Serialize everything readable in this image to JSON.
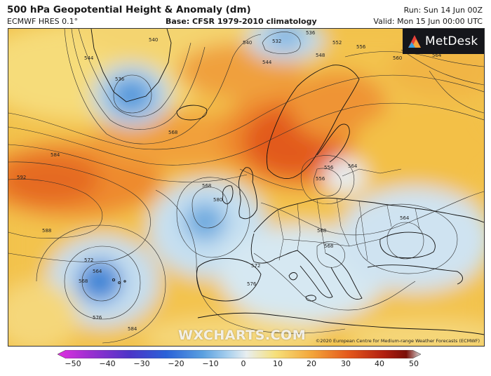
{
  "header": {
    "title": "500 hPa Geopotential Height & Anomaly (dm)",
    "model": "ECMWF HRES 0.1°",
    "base": "Base: CFSR 1979-2010 climatology",
    "run": "Run: Sun 14 Jun 00Z",
    "valid": "Valid: Mon 15 Jun 00:00 UTC"
  },
  "logo": {
    "text": "MetDesk",
    "icon": "metdesk-logo-icon"
  },
  "watermark": "WXCHARTS.COM",
  "copyright": "©2020 European Centre for Medium-range Weather Forecasts (ECMWF)",
  "contour_labels": [
    "544",
    "536",
    "540",
    "532",
    "536",
    "540",
    "544",
    "548",
    "552",
    "556",
    "560",
    "564",
    "568",
    "584",
    "592",
    "588",
    "568",
    "580",
    "572",
    "564",
    "568",
    "576",
    "584",
    "572",
    "576",
    "564",
    "568",
    "556",
    "556",
    "568",
    "564"
  ],
  "colorbar": {
    "ticks": [
      "−50",
      "−40",
      "−30",
      "−20",
      "−10",
      "0",
      "10",
      "20",
      "30",
      "40",
      "50"
    ],
    "colors": [
      "#e030e0",
      "#9a2fd0",
      "#4b35c8",
      "#2a62d8",
      "#5aa0e0",
      "#a9d0ee",
      "#e8eef0",
      "#f6e07a",
      "#f3a53a",
      "#e4581c",
      "#b01e10",
      "#7a0e08"
    ]
  }
}
